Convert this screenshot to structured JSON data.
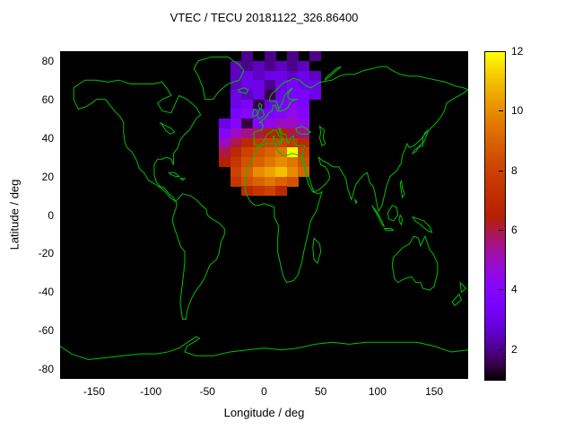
{
  "title": "VTEC / TECU 20181122_326.86400",
  "axes": {
    "x_label": "Longitude / deg",
    "y_label": "Latitude / deg",
    "x_ticks": [
      -150,
      -100,
      -50,
      0,
      50,
      100,
      150
    ],
    "y_ticks": [
      -80,
      -60,
      -40,
      -20,
      0,
      20,
      40,
      60,
      80
    ]
  },
  "colorbar": {
    "ticks": [
      2,
      4,
      6,
      8,
      10,
      12
    ],
    "range": [
      1,
      12
    ]
  },
  "colors": {
    "background": "#ffffff",
    "map_background": "#000000",
    "coastline": "#00c000",
    "text": "#000000"
  },
  "chart_data": {
    "type": "heatmap",
    "title": "VTEC / TECU 20181122_326.86400",
    "xlabel": "Longitude / deg",
    "ylabel": "Latitude / deg",
    "xlim": [
      -180,
      180
    ],
    "ylim": [
      -85,
      85
    ],
    "value_unit": "TECU",
    "colorbar_range": [
      1,
      12
    ],
    "colorbar_ticks": [
      2,
      4,
      6,
      8,
      10,
      12
    ],
    "palette": "gnuplot pm3d black-purple-red-yellow",
    "grid_note": "VTEC cells over Europe/Africa sector; lon columns start -40 step 10, lat rows start top 85 step -5, cell 10x5 deg, null = no data",
    "lon_left_start": -40,
    "lon_step": 10,
    "lat_top_start": 85,
    "lat_step": -5,
    "cell_lon": 10,
    "cell_lat": 5,
    "rows": [
      [
        null,
        null,
        2,
        null,
        2,
        null,
        2,
        null,
        2
      ],
      [
        null,
        2.5,
        2,
        2.5,
        2,
        2.5,
        2,
        2.5,
        null
      ],
      [
        null,
        2.5,
        3,
        2.5,
        3,
        3,
        2.5,
        3,
        2.5
      ],
      [
        null,
        2.5,
        3,
        3,
        2,
        3,
        3.5,
        3,
        3
      ],
      [
        null,
        3,
        2.5,
        3,
        1.5,
        3,
        3.5,
        3.5,
        3
      ],
      [
        null,
        3,
        3.5,
        1.5,
        3,
        3.5,
        4,
        3.5,
        null
      ],
      [
        null,
        3.5,
        4,
        3,
        3.5,
        4,
        4.5,
        4,
        null
      ],
      [
        3,
        4,
        1.5,
        4,
        4.5,
        5,
        5,
        4.5,
        null
      ],
      [
        4,
        5,
        5.5,
        6,
        6.5,
        6.5,
        6,
        5.5,
        null
      ],
      [
        5,
        6,
        7,
        7.5,
        8,
        8,
        7.5,
        7,
        null
      ],
      [
        6,
        7,
        8,
        8.5,
        9,
        9.5,
        12,
        8,
        null
      ],
      [
        6.5,
        7.5,
        8.5,
        9,
        9.5,
        10,
        9.5,
        8.5,
        null
      ],
      [
        null,
        8,
        9,
        10,
        10.5,
        11,
        10,
        9,
        null
      ],
      [
        null,
        7.5,
        8.5,
        9,
        9.5,
        9,
        8.5,
        null,
        null
      ],
      [
        null,
        null,
        7,
        7.5,
        8,
        7,
        null,
        null,
        null
      ]
    ]
  }
}
